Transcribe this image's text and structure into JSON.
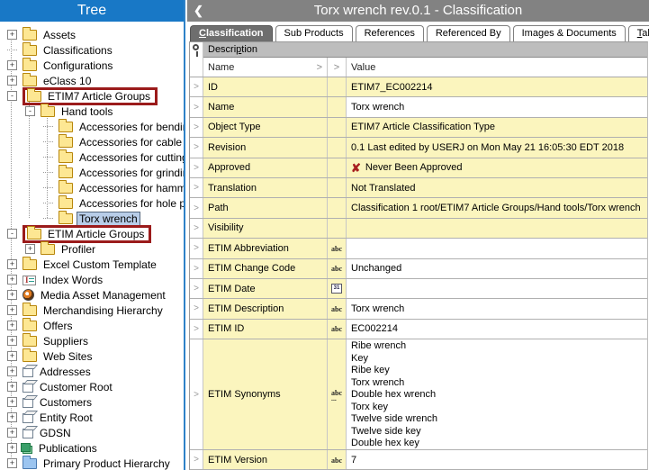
{
  "tree": {
    "title": "Tree",
    "items": [
      {
        "label": "Assets",
        "level": 0,
        "expander": "+",
        "icon": "folder-yellow"
      },
      {
        "label": "Classifications",
        "level": 0,
        "expander": "",
        "icon": "folder-yellow"
      },
      {
        "label": "Configurations",
        "level": 0,
        "expander": "+",
        "icon": "folder-yellow"
      },
      {
        "label": "eClass 10",
        "level": 0,
        "expander": "+",
        "icon": "folder-yellow"
      },
      {
        "label": "ETIM7 Article Groups",
        "level": 0,
        "expander": "-",
        "icon": "folder-yellow",
        "annotated": true
      },
      {
        "label": "Hand tools",
        "level": 1,
        "expander": "-",
        "icon": "folder-yellow"
      },
      {
        "label": "Accessories for bending to",
        "level": 2,
        "expander": "",
        "icon": "folder-yellow"
      },
      {
        "label": "Accessories for cable pullin",
        "level": 2,
        "expander": "",
        "icon": "folder-yellow"
      },
      {
        "label": "Accessories for cutting too",
        "level": 2,
        "expander": "",
        "icon": "folder-yellow"
      },
      {
        "label": "Accessories for grinding wh",
        "level": 2,
        "expander": "",
        "icon": "folder-yellow"
      },
      {
        "label": "Accessories for hammer, ch",
        "level": 2,
        "expander": "",
        "icon": "folder-yellow"
      },
      {
        "label": "Accessories for hole punch",
        "level": 2,
        "expander": "",
        "icon": "folder-yellow"
      },
      {
        "label": "Torx wrench",
        "level": 2,
        "expander": "",
        "icon": "folder-yellow",
        "selected": true
      },
      {
        "label": "ETIM Article Groups",
        "level": 0,
        "expander": "-",
        "icon": "folder-yellow",
        "annotated": true
      },
      {
        "label": "Profiler",
        "level": 1,
        "expander": "+",
        "icon": "folder-yellow"
      },
      {
        "label": "Excel Custom Template",
        "level": 0,
        "expander": "+",
        "icon": "folder-yellow"
      },
      {
        "label": "Index Words",
        "level": 0,
        "expander": "+",
        "icon": "index-words"
      },
      {
        "label": "Media Asset Management",
        "level": 0,
        "expander": "+",
        "icon": "media-asset"
      },
      {
        "label": "Merchandising Hierarchy",
        "level": 0,
        "expander": "+",
        "icon": "folder-yellow"
      },
      {
        "label": "Offers",
        "level": 0,
        "expander": "+",
        "icon": "folder-yellow"
      },
      {
        "label": "Suppliers",
        "level": 0,
        "expander": "+",
        "icon": "folder-yellow"
      },
      {
        "label": "Web Sites",
        "level": 0,
        "expander": "+",
        "icon": "folder-yellow"
      },
      {
        "label": "Addresses",
        "level": 0,
        "expander": "+",
        "icon": "cube"
      },
      {
        "label": "Customer Root",
        "level": 0,
        "expander": "+",
        "icon": "cube"
      },
      {
        "label": "Customers",
        "level": 0,
        "expander": "+",
        "icon": "cube"
      },
      {
        "label": "Entity Root",
        "level": 0,
        "expander": "+",
        "icon": "cube"
      },
      {
        "label": "GDSN",
        "level": 0,
        "expander": "+",
        "icon": "cube"
      },
      {
        "label": "Publications",
        "level": 0,
        "expander": "+",
        "icon": "publications"
      },
      {
        "label": "Primary Product Hierarchy",
        "level": 0,
        "expander": "+",
        "icon": "folder-blue"
      }
    ]
  },
  "header": {
    "back_icon": "❮",
    "title": "Torx wrench rev.0.1 - Classification"
  },
  "tabs": [
    {
      "label": "Classification",
      "accel": "C",
      "active": true
    },
    {
      "label": "Sub Products",
      "accel": "",
      "active": false
    },
    {
      "label": "References",
      "accel": "",
      "active": false
    },
    {
      "label": "Referenced By",
      "accel": "",
      "active": false
    },
    {
      "label": "Images & Documents",
      "accel": "",
      "active": false
    },
    {
      "label": "Tables",
      "accel": "T",
      "active": false
    }
  ],
  "section": {
    "label": "Description",
    "accel": "p"
  },
  "grid": {
    "columns": {
      "name": "Name",
      "value": "Value"
    },
    "sort_glyph": ">",
    "row_expander_glyph": ">",
    "rows": [
      {
        "name": "ID",
        "type_icon": "",
        "value": "ETIM7_EC002214",
        "value_bg": "yellow"
      },
      {
        "name": "Name",
        "type_icon": "",
        "value": "Torx wrench",
        "value_bg": "white"
      },
      {
        "name": "Object Type",
        "type_icon": "",
        "value": "ETIM7 Article Classification Type",
        "value_bg": "yellow"
      },
      {
        "name": "Revision",
        "type_icon": "",
        "value": "0.1 Last edited by USERJ on Mon May 21 16:05:30 EDT 2018",
        "value_bg": "yellow"
      },
      {
        "name": "Approved",
        "type_icon": "",
        "value": "Never Been Approved",
        "value_bg": "yellow",
        "value_icon": "red-x"
      },
      {
        "name": "Translation",
        "type_icon": "",
        "value": "Not Translated",
        "value_bg": "yellow"
      },
      {
        "name": "Path",
        "type_icon": "",
        "value": "Classification 1 root/ETIM7 Article Groups/Hand tools/Torx wrench",
        "value_bg": "yellow"
      },
      {
        "name": "Visibility",
        "type_icon": "",
        "value": "",
        "value_bg": "yellow"
      },
      {
        "name": "ETIM Abbreviation",
        "type_icon": "abc",
        "value": "",
        "value_bg": "white"
      },
      {
        "name": "ETIM Change Code",
        "type_icon": "abc",
        "value": "Unchanged",
        "value_bg": "white"
      },
      {
        "name": "ETIM Date",
        "type_icon": "calendar",
        "value": "",
        "value_bg": "white"
      },
      {
        "name": "ETIM Description",
        "type_icon": "abc",
        "value": "Torx wrench",
        "value_bg": "white"
      },
      {
        "name": "ETIM ID",
        "type_icon": "abc",
        "value": "EC002214",
        "value_bg": "white"
      },
      {
        "name": "ETIM Synonyms",
        "type_icon": "abc-multi",
        "value": "Ribe wrench\nKey\nRibe key\nTorx wrench\nDouble hex wrench\nTorx key\nTwelve side wrench\nTwelve side key\nDouble hex key",
        "value_bg": "white",
        "multiline": true
      },
      {
        "name": "ETIM Version",
        "type_icon": "abc",
        "value": "7",
        "value_bg": "white"
      }
    ]
  },
  "colors": {
    "tree_header_blue": "#1878c6",
    "detail_header_gray": "#828282",
    "active_tab_gray": "#6e6e6e",
    "section_bar_gray": "#bdbdbd",
    "readonly_cell_yellow": "#fbf5be",
    "selection_blue": "#b8cde8",
    "annotation_red": "#9b1b1b",
    "approved_x_red": "#a82020"
  }
}
